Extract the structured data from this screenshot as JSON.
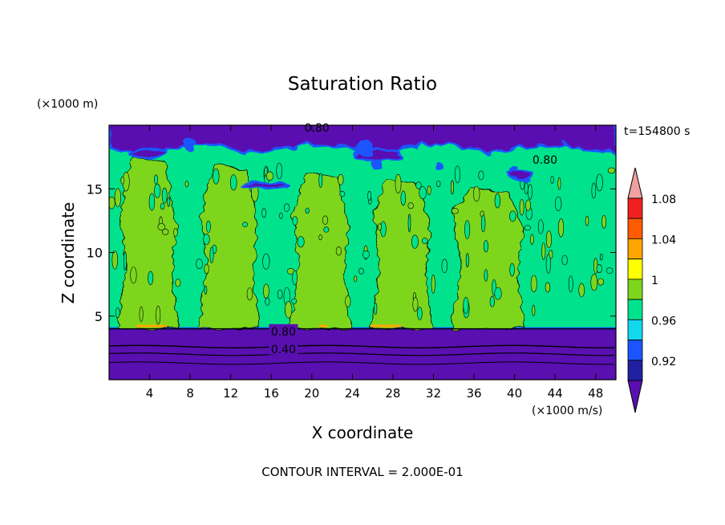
{
  "chart_data": {
    "type": "contour",
    "title": "Saturation Ratio",
    "xlabel": "X coordinate",
    "ylabel": "Z coordinate",
    "x_unit": "(×1000 m/s)",
    "y_unit": "(×1000 m)",
    "time_label": "t=154800 s",
    "footer": "CONTOUR INTERVAL = 2.000E-01",
    "xlim": [
      0,
      50
    ],
    "ylim": [
      0,
      20
    ],
    "x_ticks": [
      4,
      8,
      12,
      16,
      20,
      24,
      28,
      32,
      36,
      40,
      44,
      48
    ],
    "y_ticks": [
      5,
      10,
      15
    ],
    "contour_labels": [
      {
        "text": "0.80",
        "x": 20.5,
        "y": 19.8
      },
      {
        "text": "0.80",
        "x": 43,
        "y": 17.3
      },
      {
        "text": "0.80",
        "x": 17.2,
        "y": 3.8
      },
      {
        "text": "0.40",
        "x": 17.2,
        "y": 2.4
      }
    ],
    "colorbar": {
      "levels": [
        0.92,
        0.94,
        0.96,
        0.98,
        1.0,
        1.02,
        1.04,
        1.06,
        1.08,
        1.1
      ],
      "colors": [
        "#5a0fb0",
        "#2020a0",
        "#1a55ff",
        "#12d8ee",
        "#00e38c",
        "#7dd61e",
        "#ffff00",
        "#ffa500",
        "#ff5a00",
        "#f02020",
        "#f0a0a0"
      ],
      "tick_labels": [
        "0.92",
        "0.96",
        "1",
        "1.04",
        "1.08"
      ]
    },
    "regions": {
      "upper_layer_top_z": 18.2,
      "lower_layer_top_z": 4.0,
      "plume_columns_x": [
        [
          1.5,
          6
        ],
        [
          9.5,
          14
        ],
        [
          18.5,
          23
        ],
        [
          26.5,
          31
        ],
        [
          34.5,
          40
        ]
      ]
    }
  }
}
